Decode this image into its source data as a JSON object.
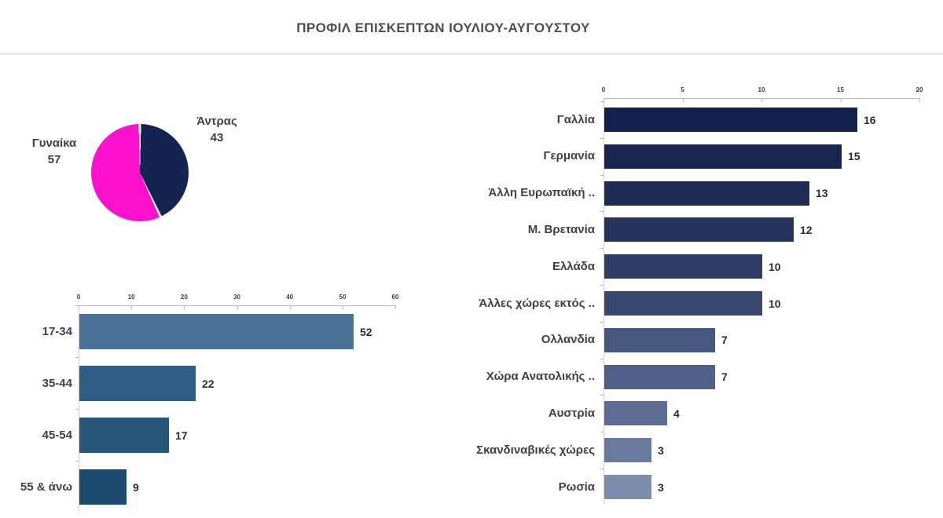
{
  "title": "ΠΡΟΦΙΛ ΕΠΙΣΚΕΠΤΩΝ ΙΟΥΛΙΟΥ-ΑΥΓΟΥΣΤΟΥ",
  "colors": {
    "pie_female": "#fa10cd",
    "pie_male": "#15244e",
    "axis": "#b9b9b9",
    "text_dark": "#3e3f4c",
    "value_text": "#2b2b33"
  },
  "chart_data": [
    {
      "id": "gender-pie",
      "type": "pie",
      "direction": "clockwise",
      "start_angle_deg": 0,
      "slices": [
        {
          "label": "Άντρας",
          "value": 43,
          "color": "#15244e"
        },
        {
          "label": "Γυναίκα",
          "value": 57,
          "color": "#fa10cd"
        }
      ]
    },
    {
      "id": "age-groups",
      "type": "bar",
      "orientation": "horizontal",
      "categories": [
        "17-34",
        "35-44",
        "45-54",
        "55 & άνω"
      ],
      "values": [
        52,
        22,
        17,
        9
      ],
      "bar_colors": [
        "#4a7298",
        "#2e5e85",
        "#275678",
        "#1c4a70"
      ],
      "xlim": [
        0,
        60
      ],
      "ticks": [
        0,
        10,
        20,
        30,
        40,
        50,
        60
      ],
      "grid": false,
      "value_labels": true
    },
    {
      "id": "countries",
      "type": "bar",
      "orientation": "horizontal",
      "categories": [
        "Γαλλία",
        "Γερμανία",
        "Άλλη Ευρωπαϊκή ..",
        "Μ. Βρετανία",
        "Ελλάδα",
        "Άλλες χώρες εκτός ..",
        "Ολλανδία",
        "Χώρα Ανατολικής ..",
        "Αυστρία",
        "Σκανδιναβικές χώρες",
        "Ρωσία"
      ],
      "values": [
        16,
        15,
        13,
        12,
        10,
        10,
        7,
        7,
        4,
        3,
        3
      ],
      "bar_colors": [
        "#14214d",
        "#182650",
        "#1e2c55",
        "#26345c",
        "#2e3d65",
        "#37476e",
        "#47587f",
        "#506089",
        "#5c6c92",
        "#6a799e",
        "#7e8cab"
      ],
      "xlim": [
        0,
        20
      ],
      "ticks": [
        0,
        5,
        10,
        15,
        20
      ],
      "grid": false,
      "value_labels": true
    }
  ]
}
